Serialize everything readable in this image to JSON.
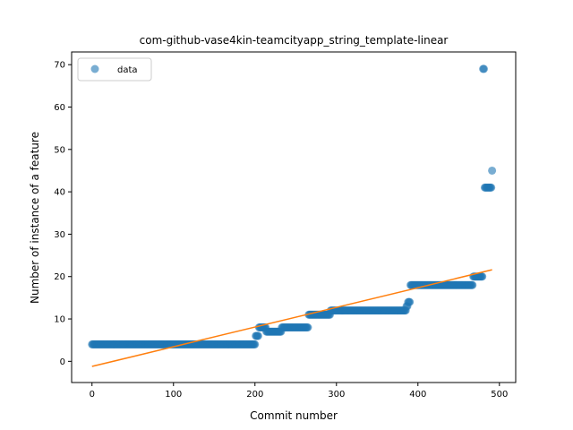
{
  "chart_data": {
    "type": "scatter",
    "title": "com-github-vase4kin-teamcityapp_string_template-linear",
    "xlabel": "Commit number",
    "ylabel": "Number of instance of a feature",
    "xlim": [
      -25,
      520
    ],
    "ylim": [
      -5,
      73
    ],
    "x_ticks": [
      0,
      100,
      200,
      300,
      400,
      500
    ],
    "y_ticks": [
      0,
      10,
      20,
      30,
      40,
      50,
      60,
      70
    ],
    "grid": false,
    "legend": {
      "position": "top-left",
      "entries": [
        "data"
      ]
    },
    "series": [
      {
        "name": "data",
        "kind": "points",
        "color": "#1f77b4",
        "opacity": 0.6,
        "segments": [
          {
            "x_start": 0,
            "x_end": 200,
            "y": 4
          },
          {
            "x_start": 201,
            "x_end": 204,
            "y": 6
          },
          {
            "x_start": 205,
            "x_end": 213,
            "y": 8
          },
          {
            "x_start": 214,
            "x_end": 232,
            "y": 7
          },
          {
            "x_start": 233,
            "x_end": 265,
            "y": 8
          },
          {
            "x_start": 266,
            "x_end": 292,
            "y": 11
          },
          {
            "x_start": 293,
            "x_end": 385,
            "y": 12
          },
          {
            "x_start": 386,
            "x_end": 387,
            "y": 13
          },
          {
            "x_start": 388,
            "x_end": 390,
            "y": 14
          },
          {
            "x_start": 391,
            "x_end": 467,
            "y": 18
          },
          {
            "x_start": 468,
            "x_end": 479,
            "y": 20
          },
          {
            "x_start": 480,
            "x_end": 481,
            "y": 69
          },
          {
            "x_start": 482,
            "x_end": 490,
            "y": 41
          },
          {
            "x_start": 491,
            "x_end": 491,
            "y": 45
          }
        ]
      },
      {
        "name": "",
        "kind": "line",
        "color": "#ff7f0e",
        "x": [
          0,
          491
        ],
        "y": [
          -1.2,
          21.6
        ]
      }
    ]
  }
}
